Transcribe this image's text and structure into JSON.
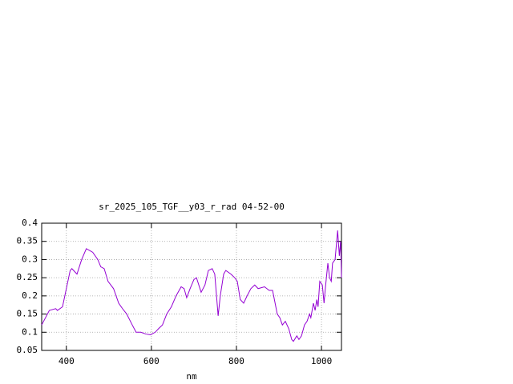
{
  "chart_data": {
    "type": "line",
    "title": "sr_2025_105_TGF__y03_r_rad 04-52-00",
    "x_label": "nm",
    "x": [
      342,
      360,
      375,
      379,
      391,
      409,
      413,
      425,
      436,
      447,
      462,
      474,
      481,
      489,
      498,
      511,
      523,
      532,
      542,
      555,
      564,
      575,
      587,
      598,
      609,
      617,
      626,
      636,
      647,
      658,
      670,
      677,
      683,
      691,
      700,
      706,
      717,
      726,
      734,
      743,
      749,
      757,
      762,
      770,
      775,
      787,
      796,
      802,
      809,
      817,
      825,
      834,
      843,
      851,
      866,
      877,
      885,
      896,
      902,
      908,
      915,
      923,
      930,
      934,
      942,
      947,
      953,
      960,
      966,
      972,
      975,
      981,
      985,
      989,
      992,
      996,
      1002,
      1006,
      1009,
      1015,
      1019,
      1023,
      1026,
      1032,
      1038,
      1042,
      1045,
      1047
    ],
    "series": [
      {
        "color": "#9400d3",
        "values": [
          0.12,
          0.16,
          0.165,
          0.16,
          0.17,
          0.27,
          0.275,
          0.26,
          0.3,
          0.33,
          0.32,
          0.3,
          0.28,
          0.275,
          0.24,
          0.22,
          0.18,
          0.165,
          0.15,
          0.12,
          0.1,
          0.1,
          0.095,
          0.093,
          0.1,
          0.11,
          0.12,
          0.15,
          0.17,
          0.2,
          0.225,
          0.22,
          0.195,
          0.22,
          0.245,
          0.25,
          0.21,
          0.23,
          0.27,
          0.275,
          0.26,
          0.145,
          0.2,
          0.26,
          0.27,
          0.26,
          0.25,
          0.24,
          0.19,
          0.18,
          0.2,
          0.22,
          0.23,
          0.22,
          0.225,
          0.215,
          0.215,
          0.15,
          0.14,
          0.12,
          0.13,
          0.11,
          0.08,
          0.075,
          0.09,
          0.08,
          0.09,
          0.12,
          0.13,
          0.15,
          0.14,
          0.18,
          0.16,
          0.19,
          0.17,
          0.24,
          0.23,
          0.18,
          0.22,
          0.29,
          0.25,
          0.24,
          0.29,
          0.3,
          0.38,
          0.31,
          0.35,
          0.25
        ]
      }
    ],
    "xlim": [
      342,
      1047
    ],
    "xticks": [
      400,
      600,
      800,
      1000
    ],
    "ylim": [
      0.05,
      0.4
    ],
    "yticks": [
      0.05,
      0.1,
      0.15,
      0.2,
      0.25,
      0.3,
      0.35,
      0.4
    ],
    "grid": true
  }
}
